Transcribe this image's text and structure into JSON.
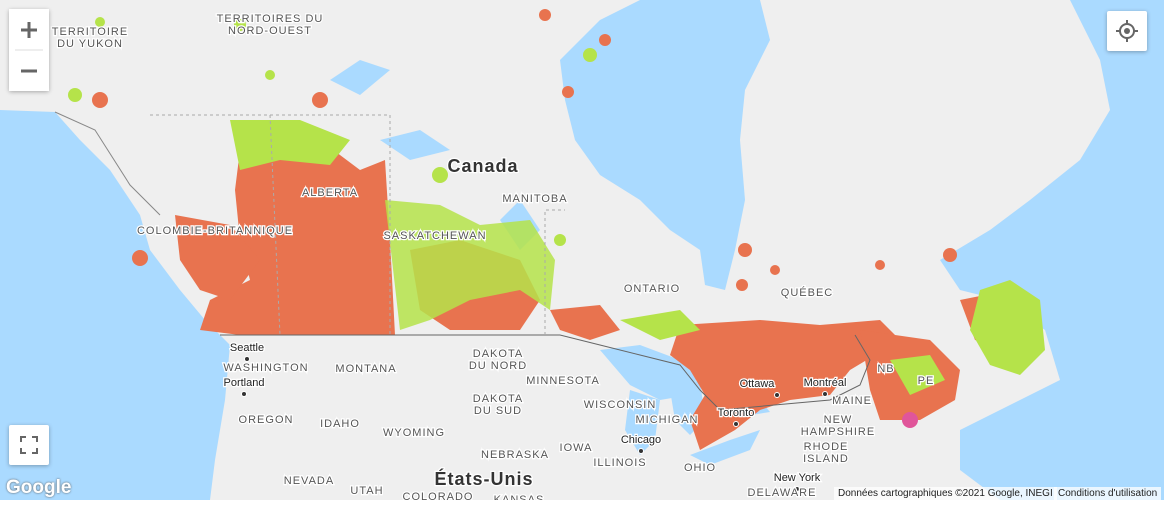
{
  "map": {
    "labels": [
      {
        "kind": "region",
        "lines": [
          "TERRITOIRES DU",
          "NORD-OUEST"
        ]
      },
      {
        "kind": "region",
        "lines": [
          "TERRITOIRE",
          "DU YUKON"
        ]
      },
      {
        "kind": "country",
        "lines": [
          "Canada"
        ]
      },
      {
        "kind": "region",
        "lines": [
          "ALBERTA"
        ]
      },
      {
        "kind": "region",
        "lines": [
          "COLOMBIE-BRITANNIQUE"
        ]
      },
      {
        "kind": "region",
        "lines": [
          "SASKATCHEWAN"
        ]
      },
      {
        "kind": "region",
        "lines": [
          "MANITOBA"
        ]
      },
      {
        "kind": "region",
        "lines": [
          "ONTARIO"
        ]
      },
      {
        "kind": "region",
        "lines": [
          "QUÉBEC"
        ]
      },
      {
        "kind": "region",
        "lines": [
          "NB"
        ]
      },
      {
        "kind": "region",
        "lines": [
          "PE"
        ]
      },
      {
        "kind": "city",
        "lines": [
          "Seattle"
        ]
      },
      {
        "kind": "region",
        "lines": [
          "WASHINGTON"
        ]
      },
      {
        "kind": "city",
        "lines": [
          "Portland"
        ]
      },
      {
        "kind": "region",
        "lines": [
          "OREGON"
        ]
      },
      {
        "kind": "region",
        "lines": [
          "IDAHO"
        ]
      },
      {
        "kind": "region",
        "lines": [
          "MONTANA"
        ]
      },
      {
        "kind": "region",
        "lines": [
          "WYOMING"
        ]
      },
      {
        "kind": "region",
        "lines": [
          "DAKOTA",
          "DU NORD"
        ]
      },
      {
        "kind": "region",
        "lines": [
          "DAKOTA",
          "DU SUD"
        ]
      },
      {
        "kind": "region",
        "lines": [
          "MINNESOTA"
        ]
      },
      {
        "kind": "region",
        "lines": [
          "WISCONSIN"
        ]
      },
      {
        "kind": "region",
        "lines": [
          "MICHIGAN"
        ]
      },
      {
        "kind": "city",
        "lines": [
          "Chicago"
        ]
      },
      {
        "kind": "region",
        "lines": [
          "IOWA"
        ]
      },
      {
        "kind": "region",
        "lines": [
          "NEBRASKA"
        ]
      },
      {
        "kind": "region",
        "lines": [
          "ILLINOIS"
        ]
      },
      {
        "kind": "region",
        "lines": [
          "OHIO"
        ]
      },
      {
        "kind": "city",
        "lines": [
          "Ottawa"
        ]
      },
      {
        "kind": "city",
        "lines": [
          "Montréal"
        ]
      },
      {
        "kind": "city",
        "lines": [
          "Toronto"
        ]
      },
      {
        "kind": "region",
        "lines": [
          "MAINE"
        ]
      },
      {
        "kind": "region",
        "lines": [
          "NEW",
          "HAMPSHIRE"
        ]
      },
      {
        "kind": "region",
        "lines": [
          "RHODE",
          "ISLAND"
        ]
      },
      {
        "kind": "city",
        "lines": [
          "New York"
        ]
      },
      {
        "kind": "region",
        "lines": [
          "DELAWARE"
        ]
      },
      {
        "kind": "country",
        "lines": [
          "États-Unis"
        ]
      },
      {
        "kind": "region",
        "lines": [
          "NEVADA"
        ]
      },
      {
        "kind": "region",
        "lines": [
          "UTAH"
        ]
      },
      {
        "kind": "region",
        "lines": [
          "COLORADO"
        ]
      },
      {
        "kind": "region",
        "lines": [
          "KANSAS"
        ]
      }
    ],
    "logo": "Google",
    "attribution": "Données cartographiques ©2021 Google, INEGI",
    "terms": "Conditions d'utilisation"
  }
}
